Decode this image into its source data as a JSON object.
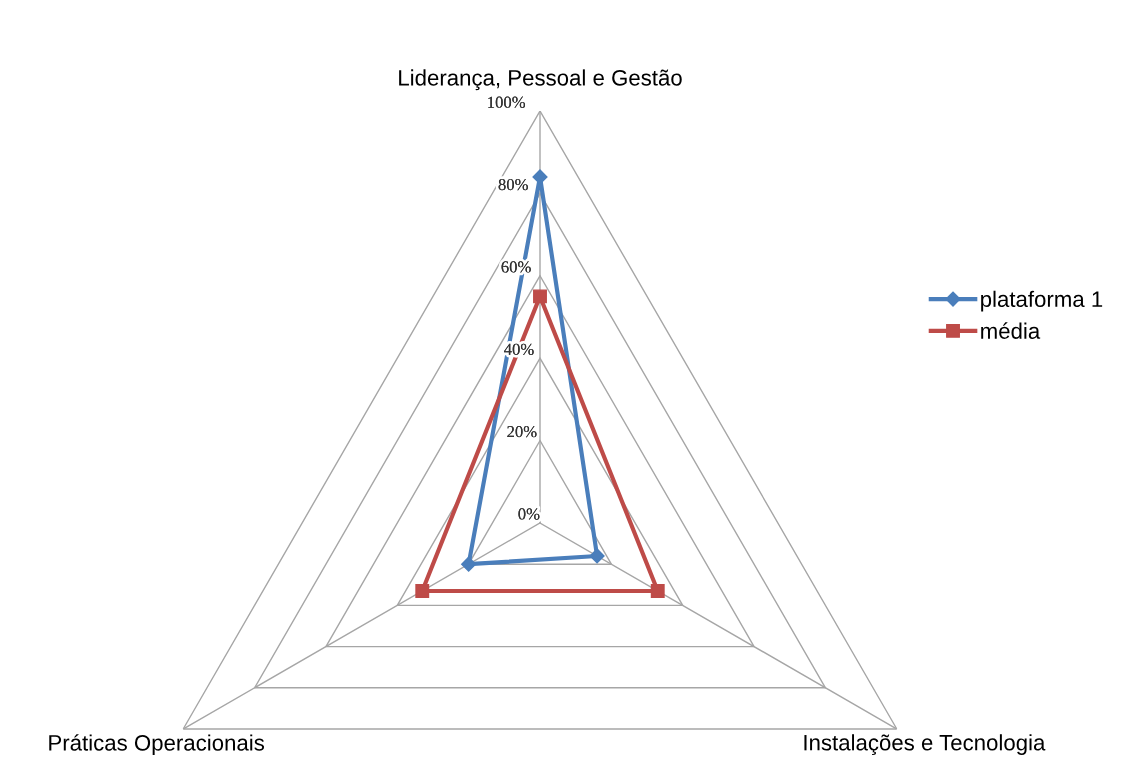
{
  "chart_data": {
    "type": "radar",
    "categories": [
      "Liderança, Pessoal e Gestão",
      "Instalações e Tecnologia",
      "Práticas Operacionais"
    ],
    "series": [
      {
        "name": "plataforma 1",
        "color": "#4a7ebb",
        "values": [
          84,
          16,
          20
        ]
      },
      {
        "name": "média",
        "color": "#be4b48",
        "values": [
          55,
          33,
          33
        ]
      }
    ],
    "ylim": [
      0,
      100
    ],
    "yticks": [
      {
        "value": 0,
        "label": "0%"
      },
      {
        "value": 20,
        "label": "20%"
      },
      {
        "value": 40,
        "label": "40%"
      },
      {
        "value": 60,
        "label": "60%"
      },
      {
        "value": 80,
        "label": "80%"
      },
      {
        "value": 100,
        "label": "100%"
      }
    ],
    "grid": true,
    "legend": "right",
    "marker": "diamond"
  }
}
